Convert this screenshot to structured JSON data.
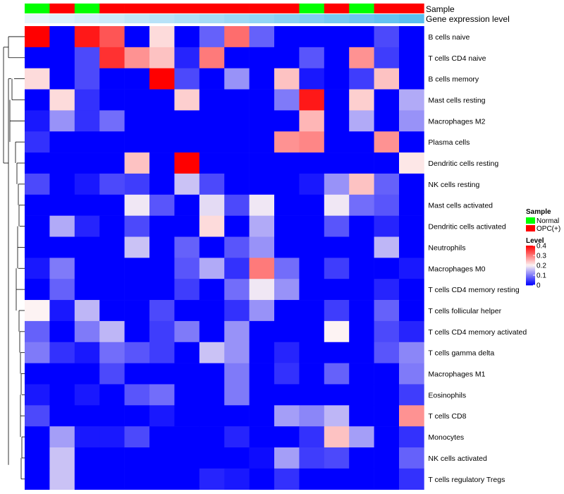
{
  "chart_data": {
    "type": "heatmap",
    "annotation_labels": {
      "sample": "Sample",
      "expression": "Gene expression level"
    },
    "sample_groups": [
      "Normal",
      "OPC(+)",
      "Normal",
      "OPC(+)",
      "OPC(+)",
      "OPC(+)",
      "OPC(+)",
      "OPC(+)",
      "OPC(+)",
      "OPC(+)",
      "OPC(+)",
      "Normal",
      "OPC(+)",
      "Normal",
      "OPC(+)",
      "OPC(+)"
    ],
    "expression_level": [
      0.02,
      0.04,
      0.06,
      0.08,
      0.1,
      0.12,
      0.14,
      0.16,
      0.18,
      0.2,
      0.22,
      0.24,
      0.26,
      0.28,
      0.3,
      0.32
    ],
    "rows": [
      "B cells naive",
      "T cells CD4 naive",
      "B cells memory",
      "Mast cells resting",
      "Macrophages M2",
      "Plasma cells",
      "Dendritic cells resting",
      "NK cells resting",
      "Mast cells activated",
      "Dendritic cells activated",
      "Neutrophils",
      "Macrophages M0",
      "T cells CD4 memory resting",
      "T cells follicular helper",
      "T cells CD4 memory activated",
      "T cells gamma delta",
      "Macrophages M1",
      "Eosinophils",
      "T cells CD8",
      "Monocytes",
      "NK cells activated",
      "T cells regulatory  Tregs"
    ],
    "values": [
      [
        0.4,
        0.0,
        0.38,
        0.33,
        0.0,
        0.22,
        0.0,
        0.08,
        0.31,
        0.08,
        0.0,
        0.0,
        0.0,
        0.0,
        0.06,
        0.0
      ],
      [
        0.0,
        0.0,
        0.06,
        0.36,
        0.28,
        0.24,
        0.03,
        0.3,
        0.0,
        0.0,
        0.0,
        0.07,
        0.0,
        0.28,
        0.05,
        0.0
      ],
      [
        0.22,
        0.0,
        0.06,
        0.0,
        0.0,
        0.4,
        0.06,
        0.0,
        0.12,
        0.0,
        0.24,
        0.02,
        0.0,
        0.05,
        0.24,
        0.0
      ],
      [
        0.0,
        0.22,
        0.04,
        0.0,
        0.0,
        0.0,
        0.23,
        0.0,
        0.0,
        0.0,
        0.1,
        0.38,
        0.0,
        0.23,
        0.0,
        0.14
      ],
      [
        0.02,
        0.12,
        0.04,
        0.09,
        0.0,
        0.0,
        0.0,
        0.0,
        0.0,
        0.0,
        0.0,
        0.25,
        0.0,
        0.14,
        0.0,
        0.12
      ],
      [
        0.04,
        0.0,
        0.0,
        0.0,
        0.0,
        0.0,
        0.0,
        0.0,
        0.0,
        0.0,
        0.28,
        0.29,
        0.0,
        0.0,
        0.28,
        0.0
      ],
      [
        0.0,
        0.0,
        0.0,
        0.0,
        0.24,
        0.0,
        0.4,
        0.0,
        0.0,
        0.0,
        0.0,
        0.0,
        0.0,
        0.0,
        0.0,
        0.21
      ],
      [
        0.06,
        0.0,
        0.02,
        0.06,
        0.05,
        0.0,
        0.16,
        0.06,
        0.0,
        0.0,
        0.0,
        0.02,
        0.12,
        0.24,
        0.08,
        0.0
      ],
      [
        0.0,
        0.0,
        0.0,
        0.0,
        0.19,
        0.07,
        0.0,
        0.18,
        0.06,
        0.19,
        0.0,
        0.0,
        0.19,
        0.09,
        0.07,
        0.0
      ],
      [
        0.0,
        0.14,
        0.03,
        0.0,
        0.06,
        0.0,
        0.0,
        0.22,
        0.0,
        0.14,
        0.0,
        0.0,
        0.07,
        0.0,
        0.03,
        0.0
      ],
      [
        0.0,
        0.0,
        0.0,
        0.0,
        0.16,
        0.0,
        0.08,
        0.0,
        0.07,
        0.12,
        0.0,
        0.0,
        0.0,
        0.0,
        0.15,
        0.0
      ],
      [
        0.02,
        0.1,
        0.0,
        0.0,
        0.0,
        0.0,
        0.07,
        0.14,
        0.04,
        0.3,
        0.09,
        0.0,
        0.05,
        0.0,
        0.0,
        0.02
      ],
      [
        0.0,
        0.08,
        0.0,
        0.0,
        0.0,
        0.0,
        0.05,
        0.0,
        0.09,
        0.19,
        0.12,
        0.0,
        0.0,
        0.0,
        0.03,
        0.0
      ],
      [
        0.2,
        0.02,
        0.15,
        0.0,
        0.0,
        0.06,
        0.0,
        0.0,
        0.04,
        0.12,
        0.0,
        0.0,
        0.05,
        0.0,
        0.08,
        0.0
      ],
      [
        0.08,
        0.0,
        0.1,
        0.15,
        0.0,
        0.05,
        0.1,
        0.0,
        0.12,
        0.0,
        0.0,
        0.0,
        0.2,
        0.0,
        0.06,
        0.03
      ],
      [
        0.1,
        0.04,
        0.02,
        0.09,
        0.07,
        0.05,
        0.0,
        0.16,
        0.12,
        0.0,
        0.03,
        0.0,
        0.0,
        0.0,
        0.07,
        0.11
      ],
      [
        0.0,
        0.0,
        0.0,
        0.06,
        0.0,
        0.0,
        0.0,
        0.0,
        0.1,
        0.0,
        0.04,
        0.0,
        0.08,
        0.0,
        0.0,
        0.1
      ],
      [
        0.02,
        0.0,
        0.02,
        0.0,
        0.07,
        0.09,
        0.0,
        0.0,
        0.1,
        0.0,
        0.0,
        0.0,
        0.0,
        0.0,
        0.0,
        0.05
      ],
      [
        0.06,
        0.0,
        0.0,
        0.0,
        0.0,
        0.02,
        0.0,
        0.0,
        0.0,
        0.0,
        0.13,
        0.11,
        0.15,
        0.0,
        0.0,
        0.28
      ],
      [
        0.0,
        0.13,
        0.02,
        0.02,
        0.06,
        0.0,
        0.0,
        0.0,
        0.03,
        0.0,
        0.0,
        0.04,
        0.24,
        0.13,
        0.0,
        0.04
      ],
      [
        0.0,
        0.16,
        0.0,
        0.0,
        0.0,
        0.0,
        0.0,
        0.0,
        0.0,
        0.01,
        0.13,
        0.05,
        0.06,
        0.0,
        0.0,
        0.08
      ],
      [
        0.0,
        0.16,
        0.0,
        0.0,
        0.0,
        0.0,
        0.0,
        0.03,
        0.02,
        0.0,
        0.04,
        0.0,
        0.0,
        0.0,
        0.0,
        0.04
      ]
    ],
    "legend": {
      "sample_title": "Sample",
      "sample_entries": [
        {
          "label": "Normal",
          "color": "#00ff00"
        },
        {
          "label": "OPC(+)",
          "color": "#ff0000"
        }
      ],
      "level_title": "Level",
      "level_ticks": [
        "0.4",
        "0.3",
        "0.2",
        "0.1",
        "0"
      ],
      "level_tick_values": [
        0.4,
        0.3,
        0.2,
        0.1,
        0
      ],
      "level_range": [
        0,
        0.4
      ]
    },
    "colors": {
      "low": "#0000ff",
      "mid": "#fdf3f3",
      "high": "#ff0000",
      "normal": "#00ff00",
      "opc": "#ff0000"
    }
  }
}
